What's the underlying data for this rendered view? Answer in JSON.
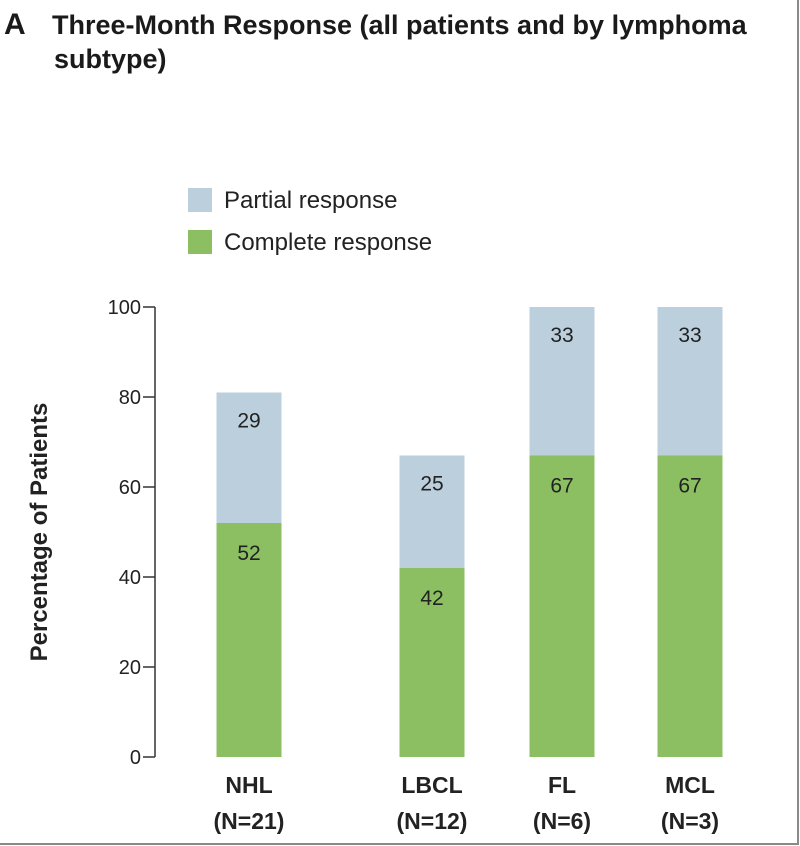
{
  "panel": {
    "letter": "A",
    "title_line1": "Three-Month Response (all patients and by lymphoma",
    "title_line2": "subtype)"
  },
  "colors": {
    "partial": "#bccfdd",
    "complete": "#8bbf62",
    "axis": "#333333"
  },
  "chart_data": {
    "type": "bar",
    "stacked": true,
    "title": "Three-Month Response (all patients and by lymphoma subtype)",
    "xlabel": "",
    "ylabel": "Percentage of Patients",
    "ylim": [
      0,
      100
    ],
    "yticks": [
      "0",
      "20",
      "40",
      "60",
      "80",
      "100"
    ],
    "categories": [
      "NHL",
      "LBCL",
      "FL",
      "MCL"
    ],
    "category_n": [
      "(N=21)",
      "(N=12)",
      "(N=6)",
      "(N=3)"
    ],
    "series": [
      {
        "name": "Complete response",
        "values": [
          52,
          42,
          67,
          67
        ],
        "labels": [
          "52",
          "42",
          "67",
          "67"
        ]
      },
      {
        "name": "Partial response",
        "values": [
          29,
          25,
          33,
          33
        ],
        "labels": [
          "29",
          "25",
          "33",
          "33"
        ]
      }
    ],
    "legend": [
      "Partial response",
      "Complete response"
    ],
    "legend_position": "top-left"
  }
}
